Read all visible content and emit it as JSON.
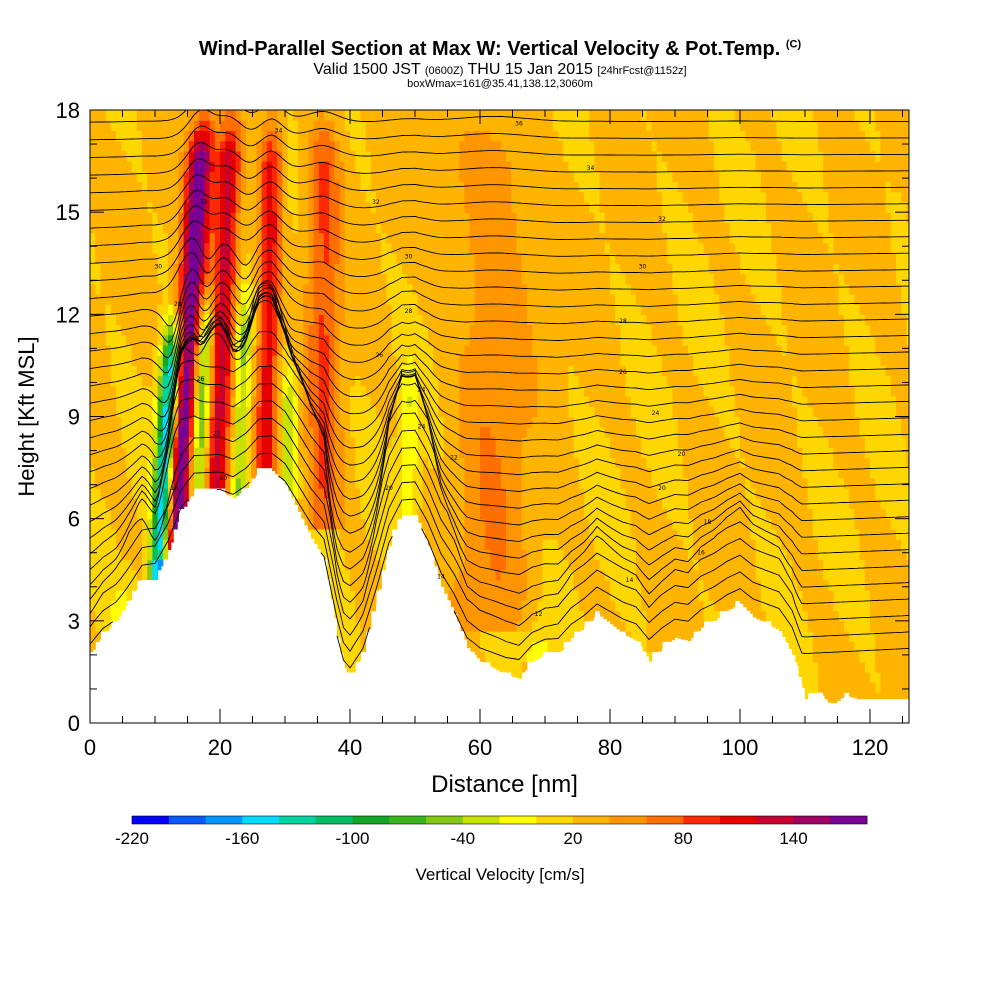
{
  "header": {
    "title": "Wind-Parallel Section at Max W: Vertical Velocity & Pot.Temp.",
    "title_tag": "(C)",
    "subtitle_main": "Valid 1500 JST",
    "subtitle_z": "(0600Z)",
    "subtitle_date": "THU 15 Jan 2015",
    "subtitle_fcst": "[24hrFcst@1152z]",
    "boxline": "boxWmax=161@35.41,138.12,3060m"
  },
  "chart_data": {
    "type": "heatmap",
    "title": "Wind-Parallel Section at Max W: Vertical Velocity & Pot.Temp.",
    "xlabel": "Distance [nm]",
    "ylabel": "Height [Kft MSL]",
    "xlim": [
      0,
      126
    ],
    "ylim": [
      0,
      18
    ],
    "xticks": [
      "0",
      "20",
      "40",
      "60",
      "80",
      "100",
      "120"
    ],
    "yticks": [
      "0",
      "3",
      "6",
      "9",
      "12",
      "15",
      "18"
    ],
    "colorbar": {
      "label": "Vertical Velocity [cm/s]",
      "tick_labels": [
        "-220",
        "-160",
        "-100",
        "-40",
        "20",
        "80",
        "140"
      ],
      "tick_values": [
        -220,
        -160,
        -100,
        -40,
        20,
        80,
        140
      ],
      "min": -220,
      "max": 180,
      "step": 20,
      "colors": [
        "#0000ff",
        "#0a5aff",
        "#0096ff",
        "#00dcff",
        "#00d2a0",
        "#00be64",
        "#14a528",
        "#3cb41e",
        "#82c814",
        "#c8e100",
        "#ffff00",
        "#ffd700",
        "#ffb400",
        "#ff9600",
        "#ff6e00",
        "#ff2800",
        "#e60000",
        "#c80032",
        "#a00064",
        "#780096"
      ]
    },
    "terrain": [
      [
        0,
        2.0
      ],
      [
        2,
        2.6
      ],
      [
        4,
        3.0
      ],
      [
        6,
        3.6
      ],
      [
        8,
        4.2
      ],
      [
        10,
        4.2
      ],
      [
        12,
        5.0
      ],
      [
        14,
        6.2
      ],
      [
        16,
        6.8
      ],
      [
        18,
        6.8
      ],
      [
        20,
        6.8
      ],
      [
        22,
        6.6
      ],
      [
        24,
        6.9
      ],
      [
        26,
        7.4
      ],
      [
        28,
        7.4
      ],
      [
        30,
        7.0
      ],
      [
        32,
        6.2
      ],
      [
        34,
        5.4
      ],
      [
        36,
        4.8
      ],
      [
        38,
        2.5
      ],
      [
        39,
        1.6
      ],
      [
        40,
        1.3
      ],
      [
        42,
        2.0
      ],
      [
        44,
        3.5
      ],
      [
        46,
        5.2
      ],
      [
        48,
        6.1
      ],
      [
        50,
        6.1
      ],
      [
        52,
        5.2
      ],
      [
        54,
        4.0
      ],
      [
        56,
        3.2
      ],
      [
        58,
        2.2
      ],
      [
        60,
        1.8
      ],
      [
        62,
        1.6
      ],
      [
        64,
        1.4
      ],
      [
        66,
        1.3
      ],
      [
        68,
        1.8
      ],
      [
        70,
        2.0
      ],
      [
        72,
        2.0
      ],
      [
        74,
        2.5
      ],
      [
        76,
        2.8
      ],
      [
        78,
        3.2
      ],
      [
        80,
        2.9
      ],
      [
        82,
        2.6
      ],
      [
        84,
        2.4
      ],
      [
        86,
        1.8
      ],
      [
        88,
        2.2
      ],
      [
        90,
        2.5
      ],
      [
        92,
        2.4
      ],
      [
        94,
        2.8
      ],
      [
        96,
        3.0
      ],
      [
        98,
        3.3
      ],
      [
        100,
        3.5
      ],
      [
        102,
        3.1
      ],
      [
        104,
        2.9
      ],
      [
        106,
        2.7
      ],
      [
        108,
        2.0
      ],
      [
        110,
        0.7
      ],
      [
        112,
        0.9
      ],
      [
        114,
        0.5
      ],
      [
        116,
        0.8
      ],
      [
        118,
        0.7
      ],
      [
        120,
        0.7
      ],
      [
        126,
        0.7
      ]
    ],
    "updraft_bands": [
      {
        "x": 13.0,
        "ybottom": 5.0,
        "ytop": 18,
        "lean": 0.35,
        "sigma": 1.4,
        "w": 160
      },
      {
        "x": 19.5,
        "ybottom": 7.0,
        "ytop": 18,
        "lean": 0.2,
        "sigma": 1.3,
        "w": 110
      },
      {
        "x": 27.0,
        "ybottom": 7.4,
        "ytop": 18,
        "lean": 0.1,
        "sigma": 1.2,
        "w": 90
      },
      {
        "x": 36.0,
        "ybottom": 6.0,
        "ytop": 18,
        "lean": 0.0,
        "sigma": 1.8,
        "w": 60
      },
      {
        "x": 62.0,
        "ybottom": 3.0,
        "ytop": 18,
        "lean": 0.0,
        "sigma": 4.0,
        "w": 35
      }
    ],
    "downdraft_bands": [
      {
        "x": 10.5,
        "ybottom": 4.2,
        "ytop": 12,
        "lean": 0.3,
        "sigma": 1.0,
        "w": -200
      },
      {
        "x": 16.5,
        "ybottom": 6.8,
        "ytop": 13,
        "lean": 0.25,
        "sigma": 0.9,
        "w": -100
      },
      {
        "x": 23.0,
        "ybottom": 7.0,
        "ytop": 13,
        "lean": 0.15,
        "sigma": 0.9,
        "w": -70
      },
      {
        "x": 30.5,
        "ybottom": 7.0,
        "ytop": 11,
        "lean": 0.0,
        "sigma": 0.9,
        "w": -60
      },
      {
        "x": 49.0,
        "ybottom": 6.1,
        "ytop": 11,
        "lean": 0.0,
        "sigma": 1.0,
        "w": -40
      },
      {
        "x": 5.0,
        "ybottom": 2.5,
        "ytop": 4.5,
        "lean": 0.0,
        "sigma": 1.5,
        "w": -30
      },
      {
        "x": 69.0,
        "ybottom": 2.0,
        "ytop": 3.5,
        "lean": 0.0,
        "sigma": 2.0,
        "w": -30
      }
    ],
    "contour_labels": [
      {
        "text": "36",
        "x": 66,
        "y": 17.6
      },
      {
        "text": "34",
        "x": 29,
        "y": 17.4
      },
      {
        "text": "34",
        "x": 77,
        "y": 16.3
      },
      {
        "text": "32",
        "x": 17.5,
        "y": 15.3
      },
      {
        "text": "32",
        "x": 44,
        "y": 15.3
      },
      {
        "text": "32",
        "x": 88,
        "y": 14.8
      },
      {
        "text": "30",
        "x": 10.5,
        "y": 13.4
      },
      {
        "text": "30",
        "x": 49,
        "y": 13.7
      },
      {
        "text": "30",
        "x": 85,
        "y": 13.4
      },
      {
        "text": "28",
        "x": 13.5,
        "y": 12.3
      },
      {
        "text": "28",
        "x": 49,
        "y": 12.1
      },
      {
        "text": "28",
        "x": 82,
        "y": 11.8
      },
      {
        "text": "26",
        "x": 44.5,
        "y": 10.8
      },
      {
        "text": "26",
        "x": 82,
        "y": 10.3
      },
      {
        "text": "26",
        "x": 17,
        "y": 10.1
      },
      {
        "text": "24",
        "x": 51,
        "y": 9.8
      },
      {
        "text": "24",
        "x": 87,
        "y": 9.1
      },
      {
        "text": "24",
        "x": 51,
        "y": 8.7
      },
      {
        "text": "22",
        "x": 19.5,
        "y": 8.5
      },
      {
        "text": "22",
        "x": 56,
        "y": 7.8
      },
      {
        "text": "20",
        "x": 91,
        "y": 7.9
      },
      {
        "text": "20",
        "x": 20.5,
        "y": 7.2
      },
      {
        "text": "20",
        "x": 46,
        "y": 6.9
      },
      {
        "text": "20",
        "x": 88,
        "y": 6.9
      },
      {
        "text": "18",
        "x": 13,
        "y": 6.9
      },
      {
        "text": "18",
        "x": 95,
        "y": 5.9
      },
      {
        "text": "16",
        "x": 94,
        "y": 5.0
      },
      {
        "text": "14",
        "x": 54,
        "y": 4.3
      },
      {
        "text": "14",
        "x": 83,
        "y": 4.2
      },
      {
        "text": "12",
        "x": 69,
        "y": 3.2
      }
    ]
  }
}
